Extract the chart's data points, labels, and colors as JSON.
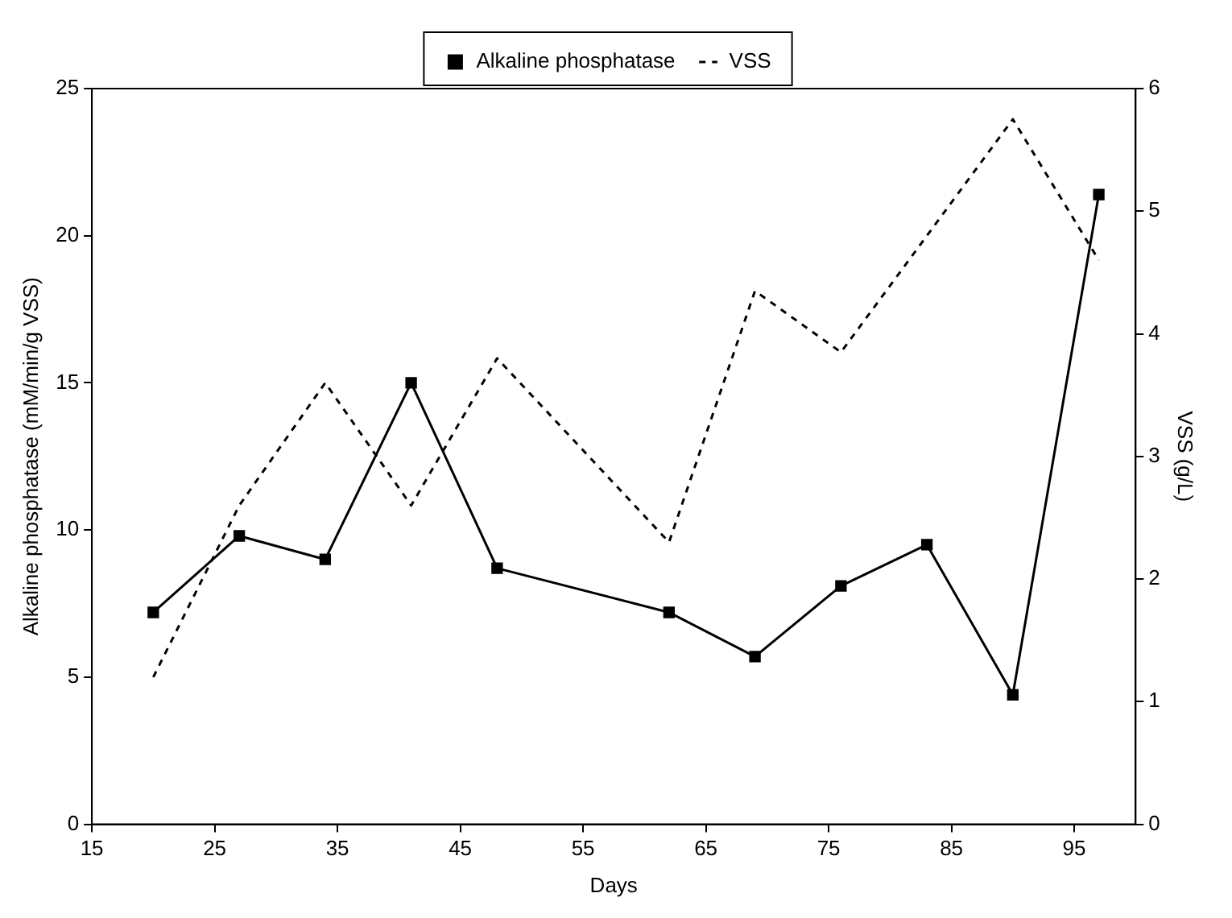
{
  "chart_data": {
    "type": "line",
    "xlabel": "Days",
    "ylabel": "Alkaline phosphatase (mM/min/g VSS)",
    "y2label": "VSS (g/L)",
    "xlim": [
      15,
      100
    ],
    "xticks": [
      15,
      25,
      35,
      45,
      55,
      65,
      75,
      85,
      95
    ],
    "ylim": [
      0,
      25
    ],
    "yticks": [
      0,
      5,
      10,
      15,
      20,
      25
    ],
    "y2lim": [
      0,
      6
    ],
    "y2ticks": [
      0,
      1,
      2,
      3,
      4,
      5,
      6
    ],
    "x": [
      20,
      27,
      34,
      41,
      48,
      62,
      69,
      76,
      83,
      90,
      97
    ],
    "series": [
      {
        "name": "Alkaline phosphatase",
        "color": "#000000",
        "marker": "square",
        "line_style": "solid",
        "values": [
          7.2,
          9.8,
          9.0,
          15.0,
          8.7,
          7.2,
          5.7,
          8.1,
          9.5,
          4.4,
          21.4
        ]
      },
      {
        "name": "VSS",
        "color": "#000000",
        "marker": "none",
        "line_style": "dashed",
        "axis": "y2",
        "values": [
          1.2,
          2.6,
          3.6,
          2.6,
          3.8,
          2.3,
          4.35,
          3.85,
          4.8,
          5.75,
          4.6
        ]
      }
    ],
    "grid": false,
    "legend": "top"
  }
}
